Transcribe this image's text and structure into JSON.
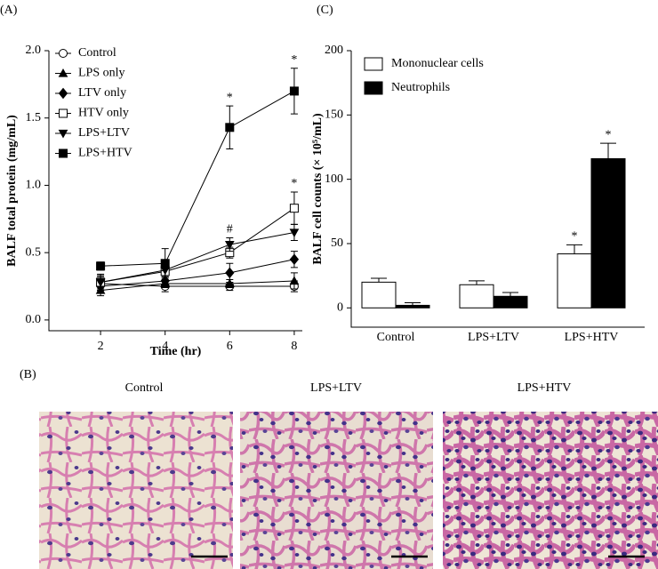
{
  "chart_data": [
    {
      "type": "line",
      "panel": "(A)",
      "ylabel": "BALF total protein (mg/mL)",
      "xlabel": "Time (hr)",
      "x": [
        2,
        4,
        6,
        8
      ],
      "xlim": [
        0.4,
        8.25
      ],
      "xticks": [
        2,
        4,
        6,
        8
      ],
      "ylim": [
        -0.08,
        2.0
      ],
      "yticks": [
        {
          "value": 0,
          "label": "0.0"
        },
        0.5,
        {
          "value": 1,
          "label": "1.0"
        },
        1.5,
        {
          "value": 2,
          "label": "2.0"
        }
      ],
      "series": [
        {
          "name": "Control",
          "color": "#000000",
          "marker": "circle-open",
          "values": [
            0.27,
            0.25,
            0.25,
            0.25
          ],
          "errors": [
            0.05,
            0.04,
            0.03,
            0.04
          ],
          "point_labels": [
            null,
            null,
            null,
            null
          ]
        },
        {
          "name": "LPS only",
          "color": "#000000",
          "marker": "triangle-up",
          "values": [
            0.22,
            0.27,
            0.27,
            0.29
          ],
          "errors": [
            0.04,
            0.03,
            0.03,
            0.06
          ],
          "point_labels": [
            null,
            null,
            null,
            null
          ]
        },
        {
          "name": "LTV only",
          "color": "#000000",
          "marker": "diamond",
          "values": [
            0.25,
            0.29,
            0.35,
            0.45
          ],
          "errors": [
            0.04,
            0.04,
            0.07,
            0.06
          ],
          "point_labels": [
            null,
            null,
            null,
            null
          ]
        },
        {
          "name": "HTV only",
          "color": "#000000",
          "marker": "square-open",
          "values": [
            0.28,
            0.36,
            0.5,
            0.83
          ],
          "errors": [
            0.05,
            0.04,
            0.04,
            0.12
          ],
          "point_labels": [
            null,
            null,
            null,
            "*"
          ]
        },
        {
          "name": "LPS+LTV",
          "color": "#000000",
          "marker": "triangle-down",
          "values": [
            0.28,
            0.37,
            0.56,
            0.65
          ],
          "errors": [
            0.06,
            0.05,
            0.05,
            0.06
          ],
          "point_labels": [
            null,
            null,
            "#",
            null
          ]
        },
        {
          "name": "LPS+HTV",
          "color": "#000000",
          "marker": "square",
          "values": [
            0.4,
            0.42,
            1.43,
            1.7
          ],
          "errors": [
            0.03,
            0.11,
            0.16,
            0.17
          ],
          "point_labels": [
            null,
            null,
            "*",
            "*"
          ]
        }
      ]
    },
    {
      "type": "bar",
      "panel": "(C)",
      "ylabel": "BALF cell counts (× 10⁵/mL)",
      "categories": [
        "Control",
        "LPS+LTV",
        "LPS+HTV"
      ],
      "ylim": [
        -15,
        200
      ],
      "yticks": [
        0,
        50,
        100,
        150,
        200
      ],
      "series": [
        {
          "name": "Mononuclear cells",
          "color": "#ffffff",
          "values": [
            20,
            18,
            42
          ],
          "errors": [
            3,
            3,
            7
          ],
          "point_labels": [
            null,
            null,
            "*"
          ]
        },
        {
          "name": "Neutrophils",
          "color": "#000000",
          "values": [
            2,
            9,
            116
          ],
          "errors": [
            2,
            3,
            12
          ],
          "point_labels": [
            null,
            null,
            "*"
          ]
        }
      ]
    }
  ],
  "micrographs": {
    "panel": "(B)",
    "labels": [
      "Control",
      "LPS+LTV",
      "LPS+HTV"
    ]
  }
}
